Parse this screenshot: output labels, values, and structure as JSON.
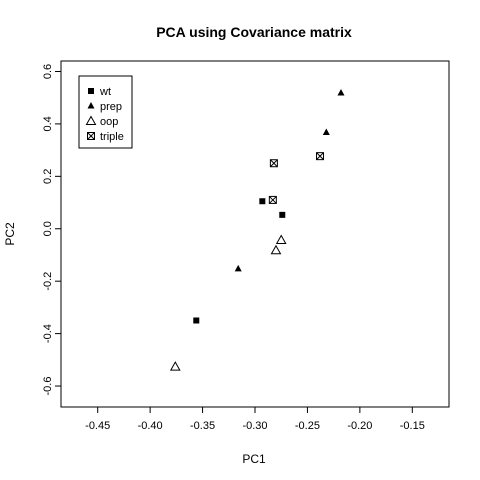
{
  "chart_data": {
    "type": "scatter",
    "title": "PCA using Covariance matrix",
    "xlabel": "PC1",
    "ylabel": "PC2",
    "xlim": [
      -0.485,
      -0.115
    ],
    "ylim": [
      -0.68,
      0.64
    ],
    "xticks": [
      -0.45,
      -0.4,
      -0.35,
      -0.3,
      -0.25,
      -0.2,
      -0.15
    ],
    "xtick_labels": [
      "-0.45",
      "-0.40",
      "-0.35",
      "-0.30",
      "-0.25",
      "-0.20",
      "-0.15"
    ],
    "yticks": [
      -0.6,
      -0.4,
      -0.2,
      0.0,
      0.2,
      0.4,
      0.6
    ],
    "ytick_labels": [
      "-0.6",
      "-0.4",
      "-0.2",
      "0.0",
      "0.2",
      "0.4",
      "0.6"
    ],
    "grid": false,
    "legend_position": "top-left",
    "series": [
      {
        "name": "wt",
        "marker": "filled-square",
        "x": [
          -0.356,
          -0.293,
          -0.274
        ],
        "y": [
          -0.35,
          0.105,
          0.053
        ]
      },
      {
        "name": "prep",
        "marker": "filled-triangle",
        "x": [
          -0.316,
          -0.232,
          -0.218
        ],
        "y": [
          -0.153,
          0.367,
          0.518
        ]
      },
      {
        "name": "oop",
        "marker": "open-triangle",
        "x": [
          -0.376,
          -0.28,
          -0.275
        ],
        "y": [
          -0.526,
          -0.082,
          -0.043
        ]
      },
      {
        "name": "triple",
        "marker": "crossed-square",
        "x": [
          -0.282,
          -0.283,
          -0.238
        ],
        "y": [
          0.25,
          0.11,
          0.277
        ]
      }
    ]
  }
}
